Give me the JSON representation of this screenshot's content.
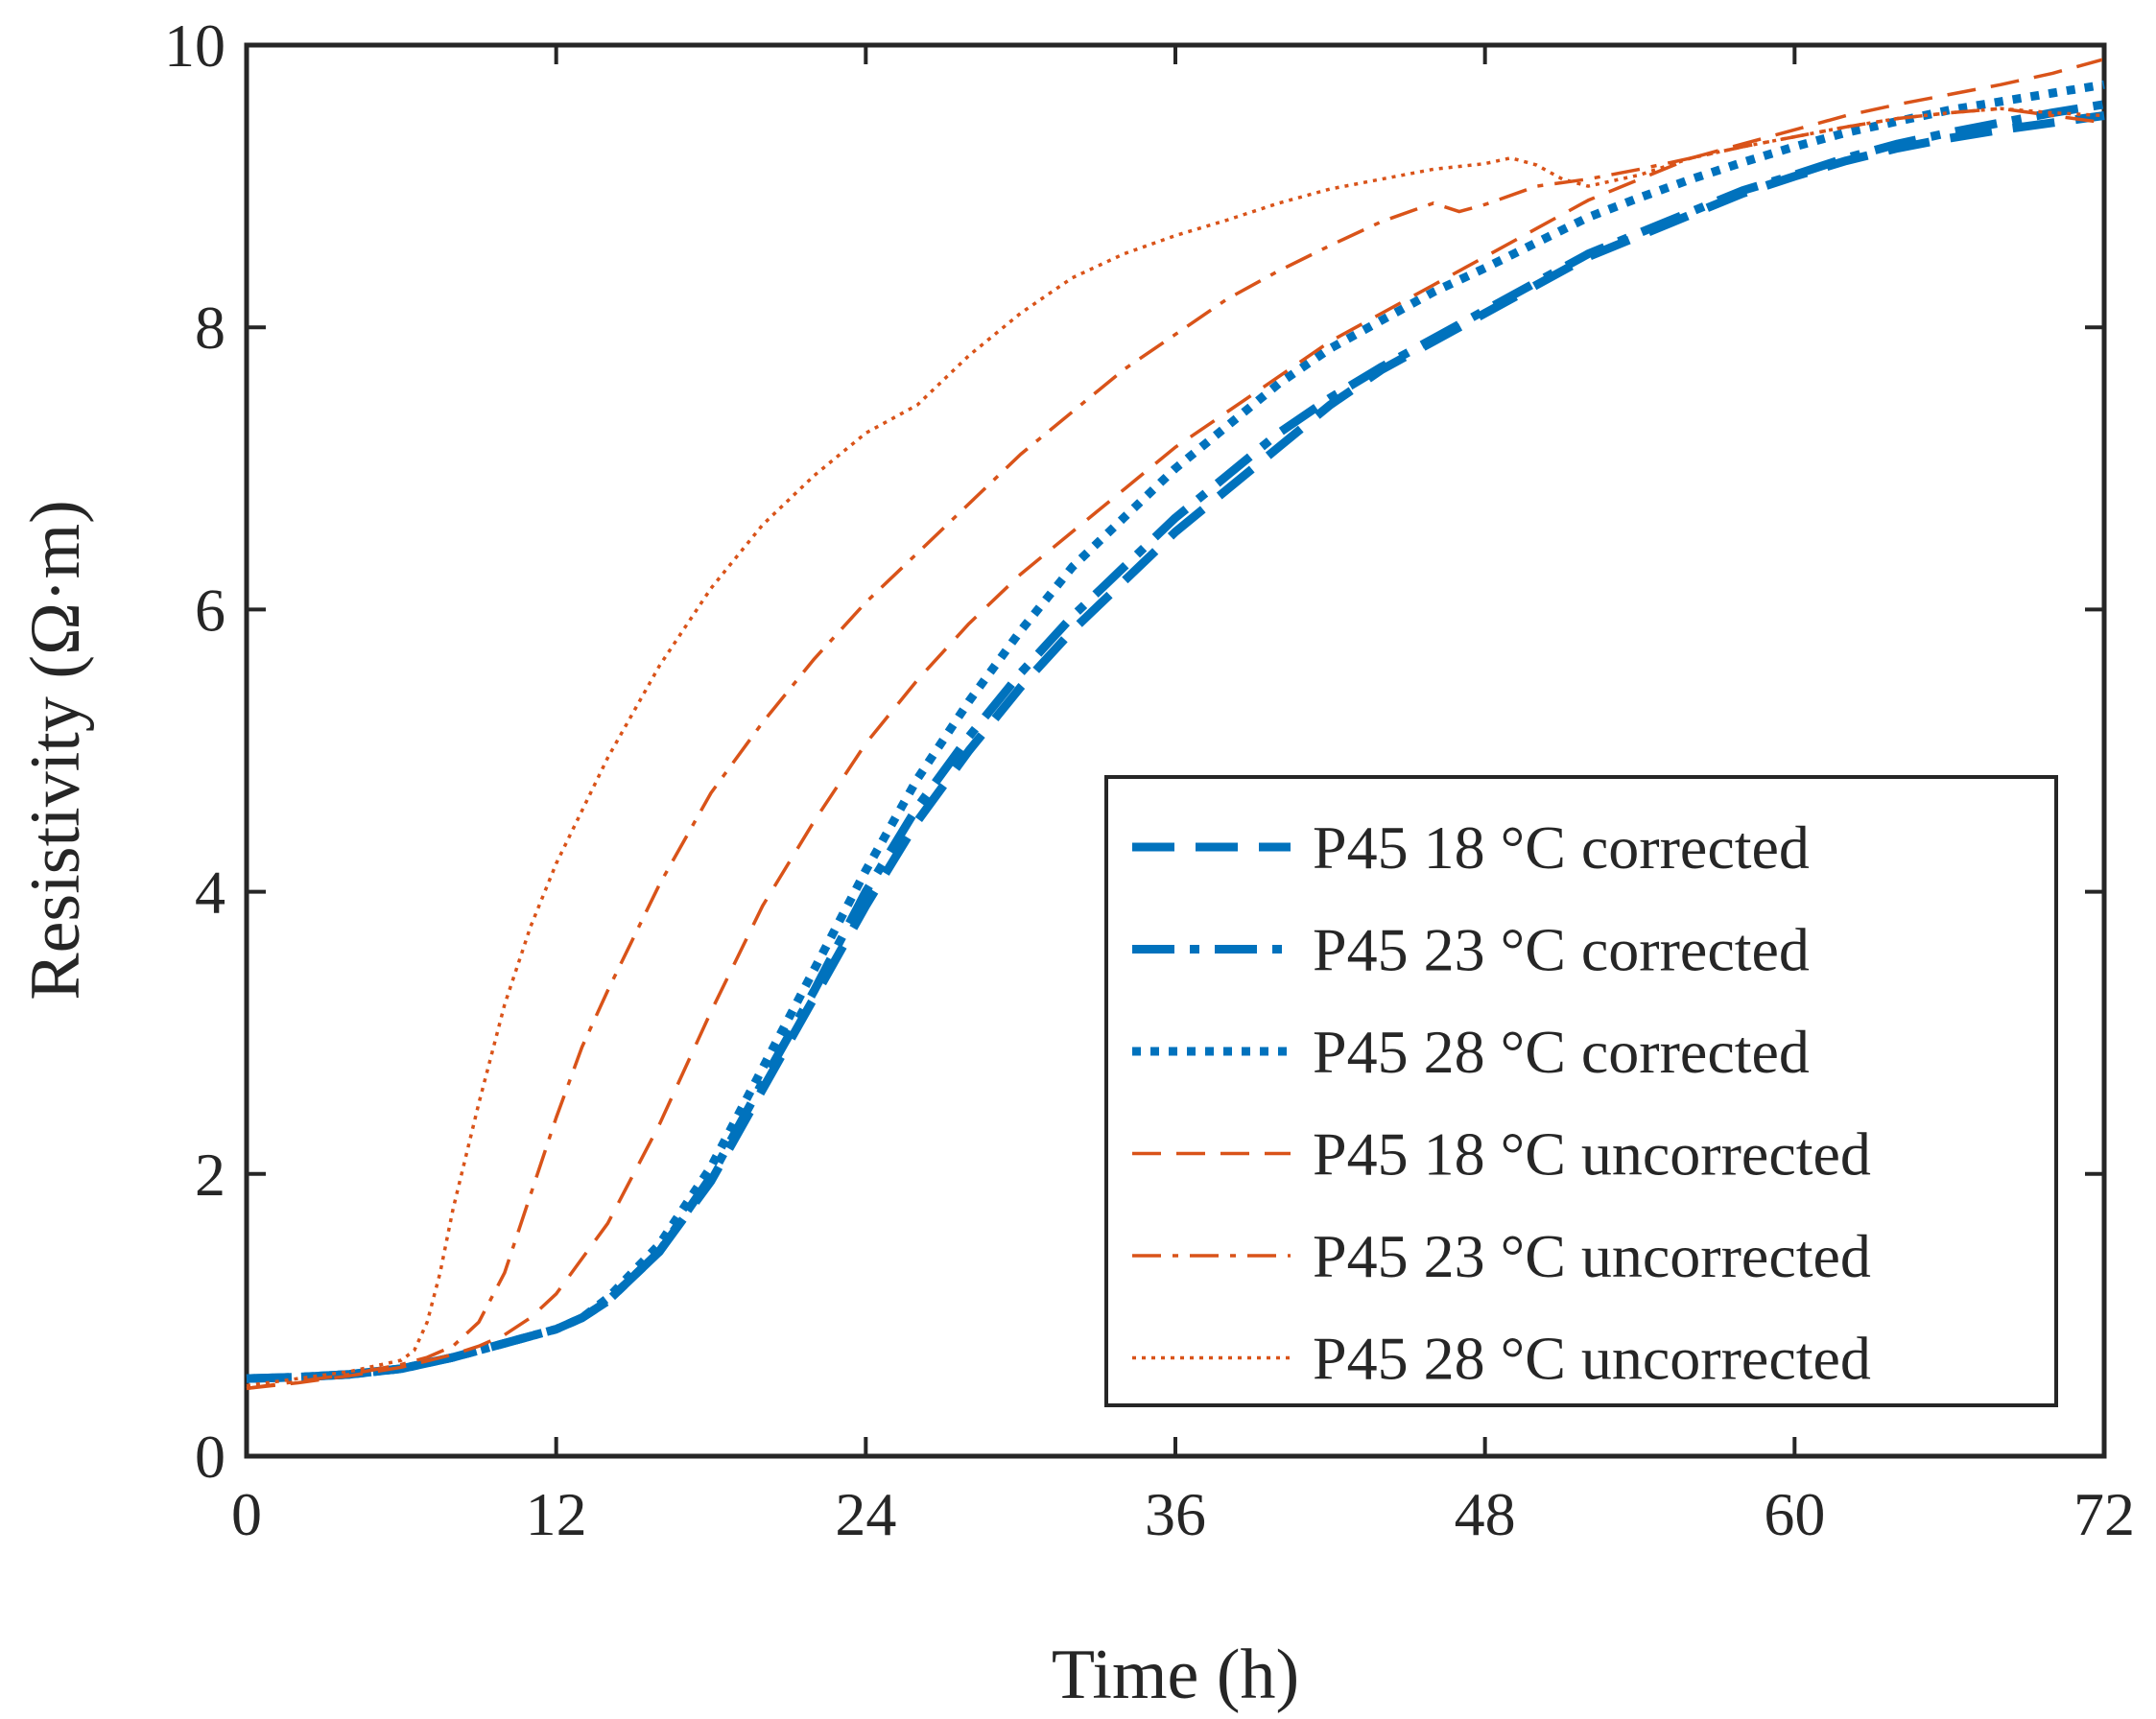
{
  "chart_data": {
    "type": "line",
    "title": "",
    "xlabel": "Time (h)",
    "ylabel": "Resistivity (Ω·m)",
    "xlim": [
      0,
      72
    ],
    "ylim": [
      0,
      10
    ],
    "xticks": [
      "0",
      "12",
      "24",
      "36",
      "48",
      "60",
      "72"
    ],
    "yticks": [
      "0",
      "2",
      "4",
      "6",
      "8",
      "10"
    ],
    "grid": false,
    "legend_position": "bottom-right",
    "series": [
      {
        "name": "P45 18 °C corrected",
        "color": "#0072BD",
        "style": "dashed",
        "weight": "thick",
        "x": [
          0,
          2,
          4,
          6,
          8,
          10,
          12,
          13,
          14,
          16,
          18,
          20,
          22,
          24,
          26,
          28,
          30,
          32,
          34,
          36,
          38,
          40,
          42,
          44,
          46,
          48,
          50,
          52,
          54,
          56,
          58,
          60,
          62,
          64,
          66,
          68,
          70,
          72
        ],
        "y": [
          0.55,
          0.56,
          0.58,
          0.62,
          0.7,
          0.8,
          0.9,
          0.98,
          1.1,
          1.45,
          1.95,
          2.6,
          3.25,
          3.9,
          4.5,
          5.0,
          5.45,
          5.85,
          6.2,
          6.55,
          6.85,
          7.15,
          7.45,
          7.7,
          7.9,
          8.1,
          8.3,
          8.5,
          8.65,
          8.8,
          8.95,
          9.07,
          9.18,
          9.27,
          9.34,
          9.4,
          9.45,
          9.5
        ]
      },
      {
        "name": "P45 23 °C corrected",
        "color": "#0072BD",
        "style": "dashdot",
        "weight": "thick",
        "x": [
          0,
          2,
          4,
          6,
          8,
          10,
          12,
          13,
          14,
          16,
          18,
          20,
          22,
          24,
          26,
          28,
          30,
          32,
          34,
          36,
          38,
          40,
          42,
          44,
          46,
          48,
          50,
          52,
          54,
          56,
          58,
          60,
          62,
          64,
          66,
          68,
          70,
          72
        ],
        "y": [
          0.55,
          0.56,
          0.58,
          0.62,
          0.7,
          0.8,
          0.9,
          0.98,
          1.1,
          1.45,
          1.98,
          2.65,
          3.3,
          4.0,
          4.6,
          5.1,
          5.55,
          5.95,
          6.3,
          6.65,
          6.95,
          7.25,
          7.5,
          7.72,
          7.92,
          8.12,
          8.32,
          8.52,
          8.67,
          8.82,
          8.97,
          9.08,
          9.2,
          9.3,
          9.38,
          9.45,
          9.52,
          9.58
        ]
      },
      {
        "name": "P45 28 °C corrected",
        "color": "#0072BD",
        "style": "dotted",
        "weight": "thick",
        "x": [
          0,
          2,
          4,
          6,
          8,
          10,
          12,
          13,
          14,
          16,
          18,
          20,
          22,
          24,
          26,
          28,
          30,
          32,
          34,
          36,
          38,
          40,
          42,
          44,
          46,
          48,
          50,
          52,
          54,
          56,
          58,
          60,
          62,
          64,
          66,
          68,
          70,
          72
        ],
        "y": [
          0.55,
          0.56,
          0.58,
          0.62,
          0.7,
          0.8,
          0.9,
          0.98,
          1.12,
          1.5,
          2.05,
          2.75,
          3.45,
          4.15,
          4.8,
          5.35,
          5.85,
          6.3,
          6.65,
          7.0,
          7.3,
          7.6,
          7.85,
          8.05,
          8.25,
          8.42,
          8.6,
          8.78,
          8.92,
          9.05,
          9.17,
          9.28,
          9.38,
          9.46,
          9.54,
          9.6,
          9.66,
          9.72
        ]
      },
      {
        "name": "P45 18 °C uncorrected",
        "color": "#D95319",
        "style": "dashed",
        "weight": "thin",
        "x": [
          0,
          2,
          4,
          6,
          8,
          9,
          10,
          11,
          12,
          14,
          16,
          18,
          20,
          22,
          24,
          26,
          28,
          30,
          32,
          34,
          36,
          38,
          40,
          42,
          44,
          46,
          48,
          50,
          52,
          54,
          56,
          58,
          60,
          62,
          64,
          66,
          68,
          70,
          72
        ],
        "y": [
          0.48,
          0.52,
          0.57,
          0.63,
          0.72,
          0.78,
          0.86,
          0.98,
          1.15,
          1.65,
          2.35,
          3.15,
          3.9,
          4.5,
          5.05,
          5.5,
          5.9,
          6.25,
          6.55,
          6.85,
          7.15,
          7.4,
          7.65,
          7.9,
          8.1,
          8.3,
          8.5,
          8.7,
          8.9,
          9.05,
          9.2,
          9.3,
          9.4,
          9.5,
          9.58,
          9.65,
          9.72,
          9.8,
          9.9
        ]
      },
      {
        "name": "P45 23 °C uncorrected",
        "color": "#D95319",
        "style": "dashdot",
        "weight": "thin",
        "x": [
          0,
          2,
          4,
          6,
          7,
          8,
          9,
          10,
          11,
          12,
          13,
          14,
          16,
          18,
          20,
          22,
          24,
          26,
          28,
          30,
          32,
          34,
          36,
          38,
          40,
          42,
          44,
          46,
          47,
          48,
          50,
          52,
          54,
          56,
          58,
          60,
          62,
          64,
          66,
          68,
          70,
          72
        ],
        "y": [
          0.48,
          0.53,
          0.58,
          0.65,
          0.7,
          0.78,
          0.95,
          1.3,
          1.85,
          2.4,
          2.9,
          3.3,
          4.05,
          4.7,
          5.2,
          5.65,
          6.05,
          6.4,
          6.75,
          7.1,
          7.4,
          7.7,
          7.95,
          8.2,
          8.4,
          8.58,
          8.75,
          8.88,
          8.82,
          8.87,
          9.0,
          9.05,
          9.12,
          9.2,
          9.28,
          9.35,
          9.42,
          9.48,
          9.52,
          9.55,
          9.5,
          9.45
        ]
      },
      {
        "name": "P45 28 °C uncorrected",
        "color": "#D95319",
        "style": "dotted",
        "weight": "thin",
        "x": [
          0,
          2,
          4,
          6,
          6.5,
          7,
          7.5,
          8,
          9,
          10,
          11,
          12,
          14,
          16,
          18,
          20,
          22,
          24,
          26,
          28,
          30,
          32,
          34,
          36,
          38,
          40,
          42,
          44,
          46,
          48,
          49,
          50,
          51,
          52,
          54,
          56,
          58,
          60,
          62,
          64,
          66,
          68,
          70,
          72
        ],
        "y": [
          0.5,
          0.55,
          0.6,
          0.68,
          0.75,
          0.95,
          1.3,
          1.75,
          2.5,
          3.2,
          3.75,
          4.2,
          4.95,
          5.6,
          6.15,
          6.6,
          6.95,
          7.25,
          7.45,
          7.8,
          8.1,
          8.35,
          8.52,
          8.65,
          8.76,
          8.88,
          8.98,
          9.05,
          9.12,
          9.16,
          9.2,
          9.15,
          9.05,
          9.0,
          9.08,
          9.2,
          9.28,
          9.35,
          9.42,
          9.48,
          9.52,
          9.55,
          9.52,
          9.5
        ]
      }
    ]
  }
}
